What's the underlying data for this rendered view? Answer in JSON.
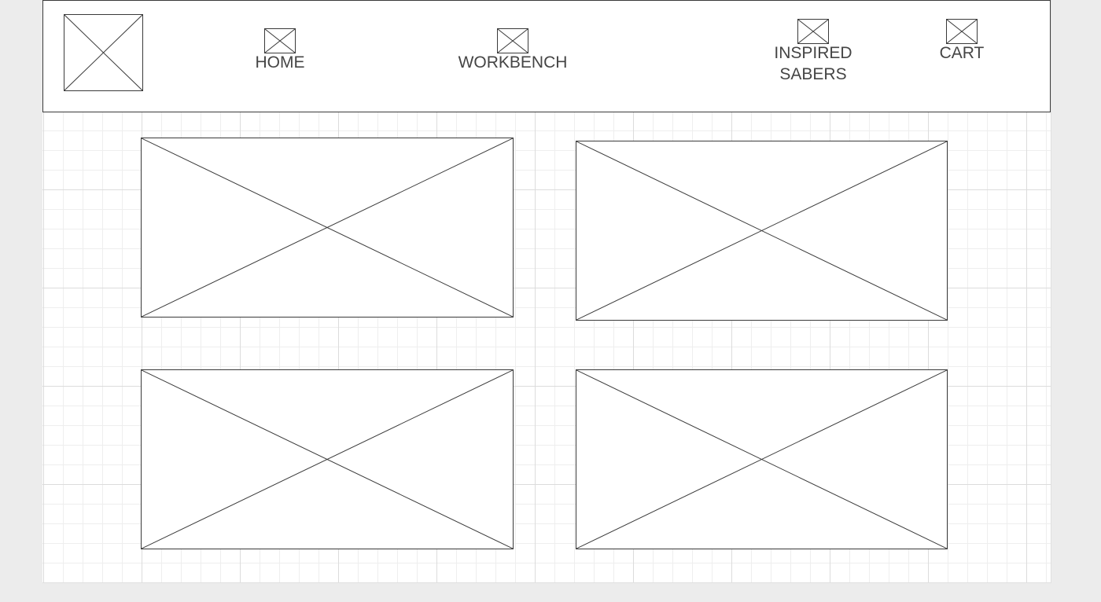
{
  "header": {
    "logo_icon": "image-placeholder-icon",
    "nav": [
      {
        "label": "HOME",
        "icon": "image-placeholder-icon"
      },
      {
        "label": "WORKBENCH",
        "icon": "image-placeholder-icon"
      },
      {
        "label": "INSPIRED",
        "label_line2": "SABERS",
        "icon": "image-placeholder-icon"
      },
      {
        "label": "CART",
        "icon": "image-placeholder-icon"
      }
    ]
  },
  "content": {
    "tiles": [
      {
        "icon": "image-placeholder-icon"
      },
      {
        "icon": "image-placeholder-icon"
      },
      {
        "icon": "image-placeholder-icon"
      },
      {
        "icon": "image-placeholder-icon"
      }
    ]
  },
  "colors": {
    "background": "#ececec",
    "canvas": "#ffffff",
    "stroke": "#3a3a3a",
    "text": "#454545",
    "grid": "#eeeeee"
  }
}
